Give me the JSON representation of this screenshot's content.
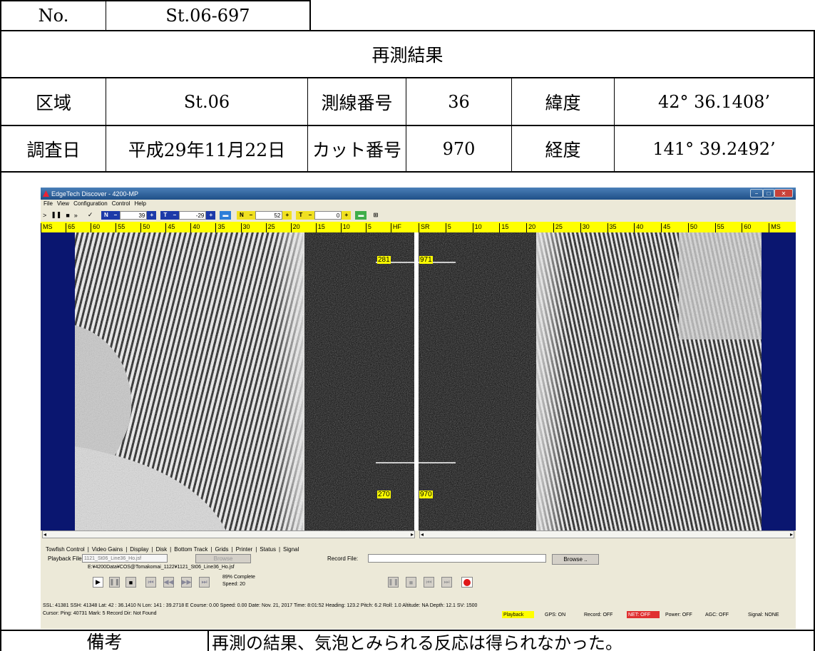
{
  "header": {
    "no_label": "No.",
    "no_value": "St.06-697",
    "title": "再測結果"
  },
  "info": {
    "area_label": "区域",
    "area_value": "St.06",
    "line_label": "測線番号",
    "line_value": "36",
    "lat_label": "緯度",
    "lat_value": "42° 36.1408’",
    "date_label": "調査日",
    "date_value": "平成29年11月22日",
    "cut_label": "カット番号",
    "cut_value": "970",
    "lon_label": "経度",
    "lon_value": "141° 39.2492’"
  },
  "app": {
    "window_title": "EdgeTech Discover - 4200-MP",
    "menu": [
      "File",
      "View",
      "Configuration",
      "Control",
      "Help"
    ],
    "toolbar": {
      "gain1": "39",
      "gain2": "-29",
      "gain3": "52",
      "gain4": "0"
    },
    "scale_left": [
      "MS",
      "65",
      "60",
      "55",
      "50",
      "45",
      "40",
      "35",
      "30",
      "25",
      "20",
      "15",
      "10",
      "5",
      "HF"
    ],
    "scale_right": [
      "SR",
      "5",
      "10",
      "15",
      "20",
      "25",
      "30",
      "35",
      "40",
      "45",
      "50",
      "55",
      "60",
      "MS"
    ],
    "markers": {
      "top_left": "281",
      "top_right": "971",
      "bottom_left": "270",
      "bottom_right": "970"
    },
    "tabs": [
      "Towfish Control",
      "Video Gains",
      "Display",
      "Disk",
      "Bottom Track",
      "Grids",
      "Printer",
      "Status",
      "Signal"
    ],
    "playback_label": "Playback File:",
    "playback_value": "1121_St06_Line36_Ho.jsf",
    "browse1": "Browse",
    "playback_path": "E:¥4200Data¥COS@Tomakomai_1122¥1121_St06_Line36_Ho.jsf",
    "record_label": "Record File:",
    "browse2": "Browse ..",
    "progress": "89% Complete",
    "speed": "Speed: 20",
    "status_line1": "SSL: 41381  SSH: 41348  Lat: 42 : 36.1410 N  Lon: 141 : 39.2718 E  Course: 0.00  Speed: 0.00  Date: Nov. 21, 2017  Time: 8:01:52  Heading: 123.2  Pitch: 6.2  Roll: 1.0  Altitude: NA  Depth: 12.1  SV: 1500",
    "status_line2": "Cursor: Ping: 40731  Mark: 5   Record Dir: Not Found",
    "status_badges": {
      "playback": "Playback",
      "gps": "GPS: ON",
      "record": "Record: OFF",
      "net": "NET: OFF",
      "power": "Power: OFF",
      "agc": "AGC: OFF",
      "signal": "Signal: NONE"
    }
  },
  "remarks": {
    "label": "備考",
    "text": "再測の結果、気泡とみられる反応は得られなかった。"
  },
  "colors": {
    "scale_bar": "#ffff00",
    "sonar_margin": "#0a1670",
    "net_off": "#e03030",
    "playback": "#ffff00"
  }
}
